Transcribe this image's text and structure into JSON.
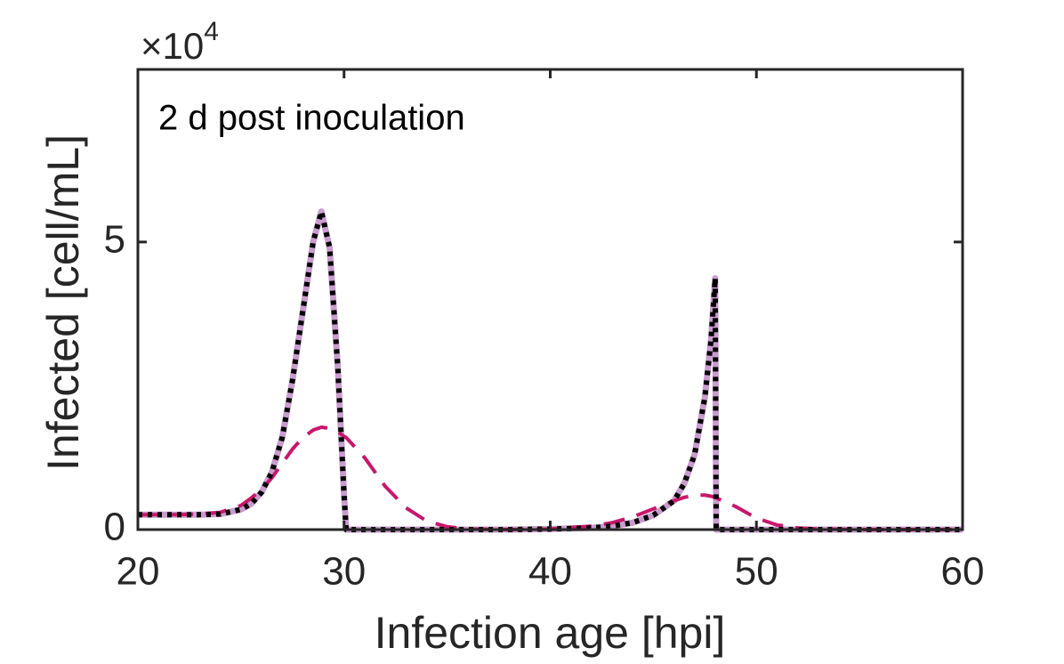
{
  "chart_data": {
    "type": "line",
    "annotation": "2 d post inoculation",
    "xlabel": "Infection age [hpi]",
    "ylabel": "Infected [cell/mL]",
    "y_multiplier_base": "×10",
    "y_multiplier_power": "4",
    "x": [
      20,
      21,
      22,
      23,
      24,
      25,
      25.5,
      26,
      26.5,
      27,
      27.5,
      28,
      28.5,
      28.9,
      29.3,
      29.7,
      30,
      30.1,
      31,
      32,
      33,
      34,
      35,
      36,
      38,
      40,
      42,
      43,
      44,
      45,
      46,
      46.5,
      47,
      47.5,
      47.8,
      48,
      48.05,
      49,
      50,
      51,
      52,
      53,
      55,
      60
    ],
    "series": [
      {
        "color": "#c89ccd",
        "style": "solid",
        "values": [
          0.26,
          0.26,
          0.26,
          0.26,
          0.27,
          0.35,
          0.45,
          0.65,
          1.0,
          1.6,
          2.6,
          3.8,
          5.0,
          5.53,
          4.9,
          2.8,
          0.6,
          0,
          0,
          0,
          0,
          0,
          0,
          0,
          0,
          0.01,
          0.03,
          0.06,
          0.12,
          0.25,
          0.5,
          0.8,
          1.3,
          2.3,
          3.3,
          4.37,
          0,
          0,
          0,
          0,
          0,
          0,
          0,
          0
        ]
      },
      {
        "color": "#c8176b",
        "style": "dashed",
        "values": [
          0.26,
          0.26,
          0.26,
          0.27,
          0.3,
          0.42,
          0.55,
          0.7,
          0.9,
          1.15,
          1.4,
          1.6,
          1.73,
          1.78,
          1.76,
          1.7,
          1.62,
          1.6,
          1.25,
          0.75,
          0.38,
          0.15,
          0.05,
          0.01,
          0,
          0.01,
          0.06,
          0.12,
          0.22,
          0.36,
          0.5,
          0.56,
          0.6,
          0.6,
          0.58,
          0.56,
          0.55,
          0.4,
          0.2,
          0.08,
          0.03,
          0.01,
          0,
          0
        ]
      },
      {
        "color": "#000000",
        "style": "dotted",
        "values": [
          0.26,
          0.26,
          0.26,
          0.26,
          0.27,
          0.35,
          0.45,
          0.65,
          1.0,
          1.6,
          2.6,
          3.8,
          5.0,
          5.53,
          4.9,
          2.8,
          0.6,
          0,
          0,
          0,
          0,
          0,
          0,
          0,
          0,
          0.01,
          0.03,
          0.06,
          0.12,
          0.25,
          0.5,
          0.8,
          1.3,
          2.3,
          3.3,
          4.37,
          0,
          0,
          0,
          0,
          0,
          0,
          0,
          0
        ]
      }
    ],
    "xlim": [
      20,
      60
    ],
    "xticks": [
      20,
      30,
      40,
      50,
      60
    ],
    "ylim": [
      0,
      8
    ],
    "yticks": [
      0,
      5
    ]
  }
}
